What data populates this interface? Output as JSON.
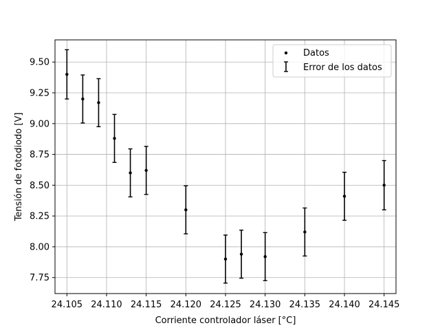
{
  "chart_data": {
    "type": "scatter",
    "title": "",
    "xlabel": "Corriente controlador láser [",
    "xlabel_unit": "°C",
    "xlabel_end": "]",
    "ylabel": "Tensión de fotodiodo [V]",
    "xlim": [
      24.1035,
      24.1465
    ],
    "ylim": [
      7.62,
      9.68
    ],
    "x_ticks": [
      24.105,
      24.11,
      24.115,
      24.12,
      24.125,
      24.13,
      24.135,
      24.14,
      24.145
    ],
    "x_tick_labels": [
      "24.105",
      "24.110",
      "24.115",
      "24.120",
      "24.125",
      "24.130",
      "24.135",
      "24.140",
      "24.145"
    ],
    "y_ticks": [
      7.75,
      8.0,
      8.25,
      8.5,
      8.75,
      9.0,
      9.25,
      9.5
    ],
    "y_tick_labels": [
      "7.75",
      "8.00",
      "8.25",
      "8.50",
      "8.75",
      "9.00",
      "9.25",
      "9.50"
    ],
    "grid": true,
    "legend_position": "top-right",
    "series": [
      {
        "name": "Datos",
        "error_name": "Error de los datos",
        "x": [
          24.105,
          24.107,
          24.109,
          24.111,
          24.113,
          24.115,
          24.12,
          24.125,
          24.127,
          24.13,
          24.135,
          24.14,
          24.145
        ],
        "y": [
          9.4,
          9.2,
          9.17,
          8.88,
          8.6,
          8.62,
          8.3,
          7.9,
          7.94,
          7.92,
          8.12,
          8.41,
          8.5
        ],
        "yerr": [
          0.2,
          0.195,
          0.195,
          0.195,
          0.195,
          0.195,
          0.195,
          0.195,
          0.195,
          0.195,
          0.195,
          0.195,
          0.2
        ],
        "color": "#000000"
      }
    ]
  }
}
